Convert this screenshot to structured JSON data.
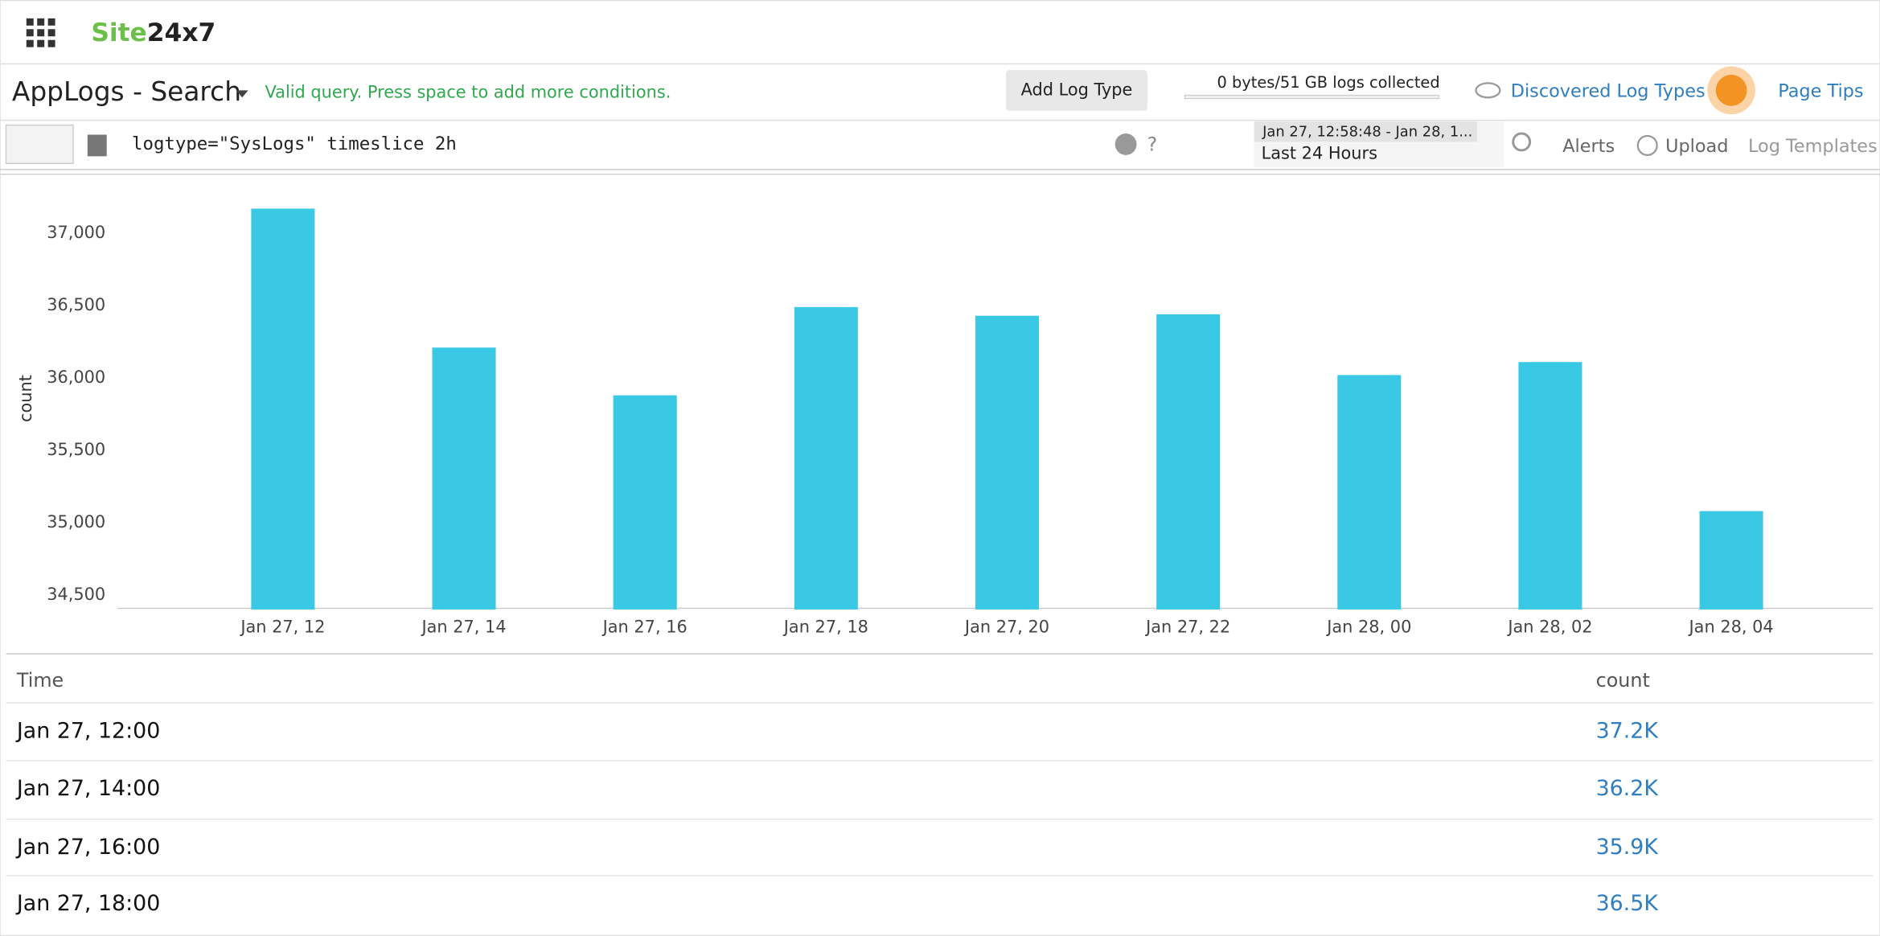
{
  "header": {
    "logo_site": "Site",
    "logo_rest": "24x7",
    "page_title": "AppLogs - Search",
    "status": "Valid query. Press space to add more conditions.",
    "add_log_type": "Add Log Type",
    "usage": "0 bytes/51 GB logs collected",
    "discovered": "Discovered Log Types",
    "page_tips": "Page Tips"
  },
  "toolbar": {
    "query": "logtype=\"SysLogs\" timeslice 2h",
    "help": "?",
    "range": "Jan 27, 12:58:48 - Jan 28, 1...",
    "range_preset": "Last 24 Hours",
    "alerts": "Alerts",
    "upload": "Upload",
    "templates": "Log Templates"
  },
  "chart_data": {
    "type": "bar",
    "y_label": "count",
    "color": "#3ac9e4",
    "categories": [
      "Jan 27, 12",
      "Jan 27, 14",
      "Jan 27, 16",
      "Jan 27, 18",
      "Jan 27, 20",
      "Jan 27, 22",
      "Jan 28, 00",
      "Jan 28, 02",
      "Jan 28, 04"
    ],
    "values": [
      37170,
      36210,
      35880,
      36490,
      36430,
      36440,
      36020,
      36110,
      35080
    ],
    "ylim": [
      34400,
      37300
    ],
    "yticks": [
      {
        "value": 34500,
        "label": "34,500"
      },
      {
        "value": 35000,
        "label": "35,000"
      },
      {
        "value": 35500,
        "label": "35,500"
      },
      {
        "value": 36000,
        "label": "36,000"
      },
      {
        "value": 36500,
        "label": "36,500"
      },
      {
        "value": 37000,
        "label": "37,000"
      }
    ],
    "grid": false
  },
  "table": {
    "columns": [
      "Time",
      "count"
    ],
    "rows": [
      [
        "Jan 27, 12:00",
        "37.2K"
      ],
      [
        "Jan 27, 14:00",
        "36.2K"
      ],
      [
        "Jan 27, 16:00",
        "35.9K"
      ],
      [
        "Jan 27, 18:00",
        "36.5K"
      ]
    ]
  }
}
